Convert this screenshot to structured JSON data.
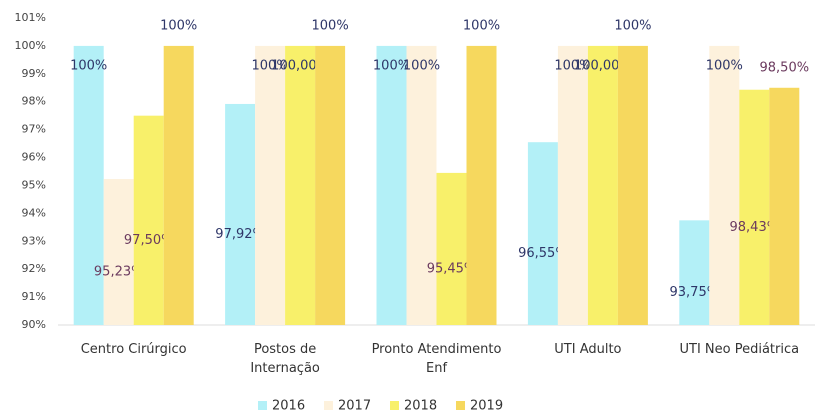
{
  "chart_data": {
    "type": "bar",
    "categories": [
      "Centro Cirúrgico",
      "Postos de\nInternação",
      "Pronto Atendimento\nEnf",
      "UTI Adulto",
      "UTI Neo Pediátrica"
    ],
    "series": [
      {
        "name": "2016",
        "color": "#b3f0f7",
        "values": [
          100,
          97.92,
          100,
          96.55,
          93.75
        ],
        "value_labels": [
          "100%",
          "97,92%",
          "100%",
          "96,55%",
          "93,75%"
        ]
      },
      {
        "name": "2017",
        "color": "#fdf1dc",
        "values": [
          95.23,
          100,
          100,
          100,
          100
        ],
        "value_labels": [
          "95,23%",
          "100%",
          "100%",
          "100%",
          "100%"
        ]
      },
      {
        "name": "2018",
        "color": "#f8f06a",
        "values": [
          97.5,
          100,
          95.45,
          100,
          98.43
        ],
        "value_labels": [
          "97,50%",
          "100,00%",
          "95,45%",
          "100,00%",
          "98,43%"
        ]
      },
      {
        "name": "2019",
        "color": "#f6d85e",
        "values": [
          100,
          100,
          100,
          100,
          98.5
        ],
        "value_labels": [
          "100%",
          "100%",
          "100%",
          "100%",
          "98,50%"
        ]
      }
    ],
    "ylim": [
      90,
      101
    ],
    "yticks": [
      {
        "value": 90,
        "label": "90%"
      },
      {
        "value": 91,
        "label": "91%"
      },
      {
        "value": 92,
        "label": "92%"
      },
      {
        "value": 93,
        "label": "93%"
      },
      {
        "value": 94,
        "label": "94%"
      },
      {
        "value": 95,
        "label": "95%"
      },
      {
        "value": 96,
        "label": "96%"
      },
      {
        "value": 97,
        "label": "97%"
      },
      {
        "value": 98,
        "label": "98%"
      },
      {
        "value": 99,
        "label": "99%"
      },
      {
        "value": 100,
        "label": "100%"
      },
      {
        "value": 101,
        "label": "101%"
      }
    ],
    "legend": "bottom"
  }
}
